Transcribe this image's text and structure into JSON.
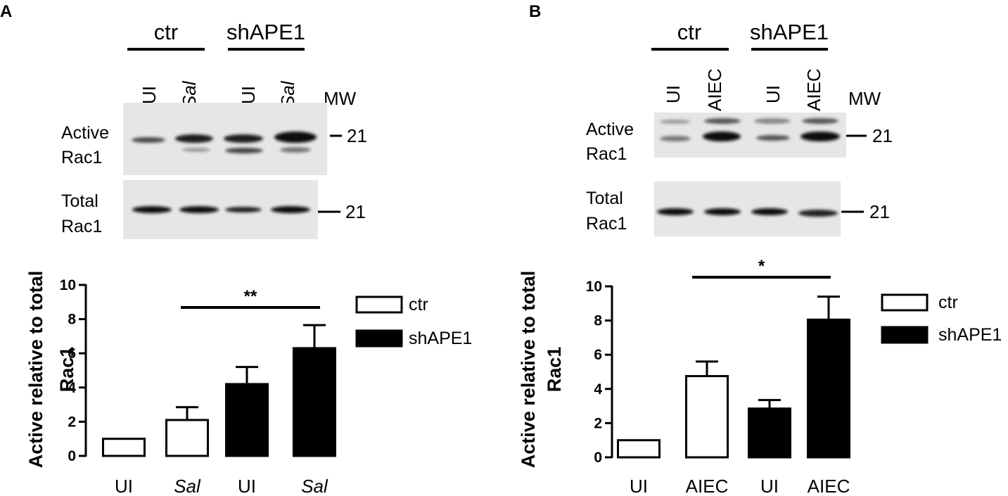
{
  "figure": {
    "panel_a": {
      "letter": "A",
      "group_labels": [
        "ctr",
        "shAPE1"
      ],
      "lane_labels": [
        "UI",
        "Sal",
        "UI",
        "Sal"
      ],
      "mw_header": "MW",
      "blot_active_label": [
        "Active",
        "Rac1"
      ],
      "blot_total_label": [
        "Total",
        "Rac1"
      ],
      "mw_active": "21",
      "mw_total": "21"
    },
    "panel_b": {
      "letter": "B",
      "group_labels": [
        "ctr",
        "shAPE1"
      ],
      "lane_labels": [
        "UI",
        "AIEC",
        "UI",
        "AIEC"
      ],
      "mw_header": "MW",
      "blot_active_label": [
        "Active",
        "Rac1"
      ],
      "blot_total_label": [
        "Total",
        "Rac1"
      ],
      "mw_active": "21",
      "mw_total": "21"
    }
  },
  "chart_data": [
    {
      "type": "bar",
      "panel": "A",
      "categories": [
        "UI",
        "Sal",
        "UI",
        "Sal"
      ],
      "italic_categories": [
        false,
        true,
        false,
        true
      ],
      "values": [
        1.0,
        2.1,
        4.2,
        6.3
      ],
      "errors": [
        0,
        0.75,
        1.0,
        1.35
      ],
      "series_of_bar": [
        "ctr",
        "ctr",
        "shAPE1",
        "shAPE1"
      ],
      "series": [
        {
          "name": "ctr",
          "color": "#ffffff"
        },
        {
          "name": "shAPE1",
          "color": "#000000"
        }
      ],
      "ylabel": [
        "Active relative to total",
        "Rac1"
      ],
      "ylim": [
        0,
        10
      ],
      "yticks": [
        "0",
        "2",
        "4",
        "6",
        "8",
        "10"
      ],
      "significance": {
        "label": "**",
        "from_bar": 1,
        "to_bar": 3
      },
      "legend_position": "right"
    },
    {
      "type": "bar",
      "panel": "B",
      "categories": [
        "UI",
        "AIEC",
        "UI",
        "AIEC"
      ],
      "italic_categories": [
        false,
        false,
        false,
        false
      ],
      "values": [
        1.0,
        4.75,
        2.85,
        8.05
      ],
      "errors": [
        0,
        0.85,
        0.5,
        1.35
      ],
      "series_of_bar": [
        "ctr",
        "ctr",
        "shAPE1",
        "shAPE1"
      ],
      "series": [
        {
          "name": "ctr",
          "color": "#ffffff"
        },
        {
          "name": "shAPE1",
          "color": "#000000"
        }
      ],
      "ylabel": [
        "Active relative to total",
        "Rac1"
      ],
      "ylim": [
        0,
        10
      ],
      "yticks": [
        "0",
        "2",
        "4",
        "6",
        "8",
        "10"
      ],
      "significance": {
        "label": "*",
        "from_bar": 1,
        "to_bar": 3
      },
      "legend_position": "right"
    }
  ]
}
